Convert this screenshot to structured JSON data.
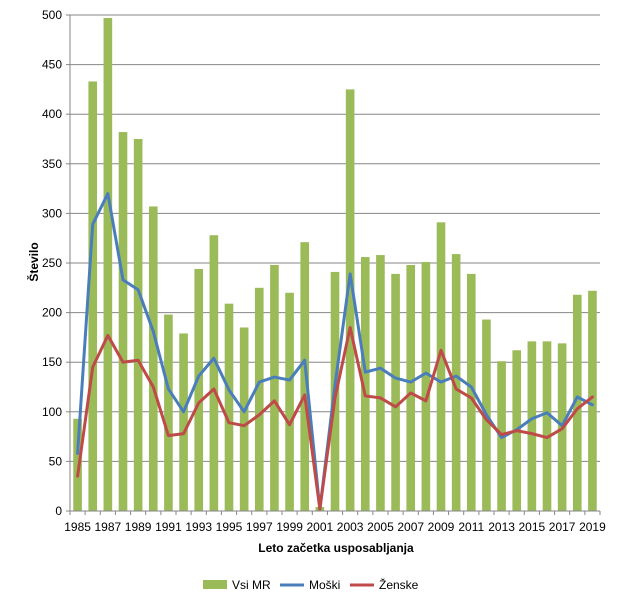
{
  "chart_data": {
    "type": "bar",
    "xlabel": "Leto začetka usposabljanja",
    "ylabel": "Število",
    "ylim": [
      0,
      500
    ],
    "yticks": [
      0,
      50,
      100,
      150,
      200,
      250,
      300,
      350,
      400,
      450,
      500
    ],
    "categories": [
      "1985",
      "1986",
      "1987",
      "1988",
      "1989",
      "1990",
      "1991",
      "1992",
      "1993",
      "1994",
      "1995",
      "1996",
      "1997",
      "1998",
      "1999",
      "2000",
      "2001",
      "2002",
      "2003",
      "2004",
      "2005",
      "2006",
      "2007",
      "2008",
      "2009",
      "2010",
      "2011",
      "2012",
      "2013",
      "2014",
      "2015",
      "2016",
      "2017",
      "2018",
      "2019"
    ],
    "xtick_labels": [
      "1985",
      "1987",
      "1989",
      "1991",
      "1993",
      "1995",
      "1997",
      "1999",
      "2001",
      "2003",
      "2005",
      "2007",
      "2009",
      "2011",
      "2013",
      "2015",
      "2017",
      "2019"
    ],
    "grid": "horizontal",
    "legend_position": "bottom",
    "series": [
      {
        "name": "Vsi MR",
        "type": "bar",
        "color": "#9bbb59",
        "values": [
          93,
          433,
          497,
          382,
          375,
          307,
          198,
          179,
          244,
          278,
          209,
          185,
          225,
          248,
          220,
          271,
          4,
          241,
          425,
          256,
          258,
          239,
          248,
          251,
          291,
          259,
          239,
          193,
          151,
          162,
          171,
          171,
          169,
          218,
          222
        ]
      },
      {
        "name": "Moški",
        "type": "line",
        "color": "#4a7ebb",
        "values": [
          58,
          289,
          320,
          233,
          223,
          181,
          123,
          100,
          136,
          154,
          122,
          100,
          130,
          135,
          132,
          152,
          2,
          127,
          239,
          140,
          144,
          134,
          130,
          139,
          130,
          136,
          125,
          97,
          74,
          82,
          93,
          99,
          86,
          115,
          107
        ]
      },
      {
        "name": "Ženske",
        "type": "line",
        "color": "#be4b48",
        "values": [
          35,
          145,
          177,
          150,
          152,
          125,
          76,
          78,
          109,
          123,
          89,
          86,
          97,
          111,
          87,
          117,
          2,
          114,
          185,
          116,
          114,
          105,
          119,
          111,
          162,
          123,
          114,
          92,
          77,
          81,
          78,
          74,
          83,
          103,
          115
        ]
      }
    ]
  }
}
